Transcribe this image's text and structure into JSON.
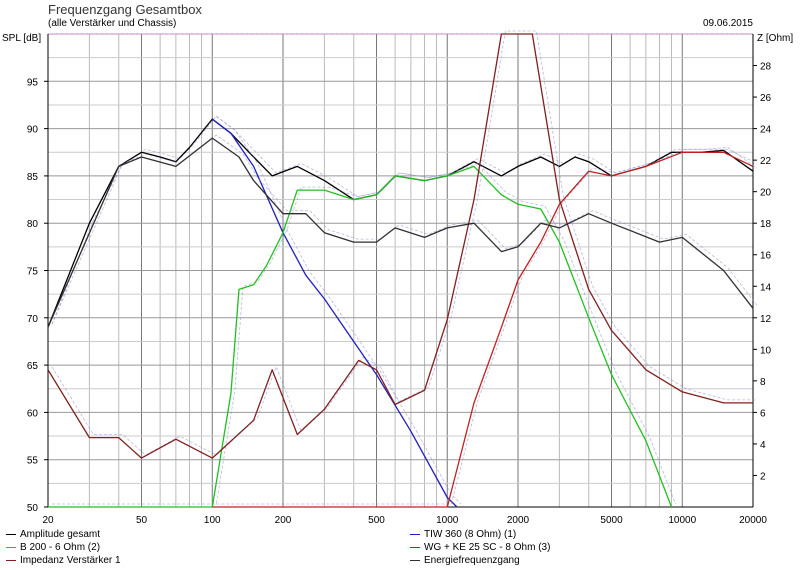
{
  "chart_data": {
    "type": "line",
    "title": "Frequenzgang Gesamtbox",
    "subtitle": "(alle Verstärker und Chassis)",
    "date": "09.06.2015",
    "xlabel": "",
    "ylabel": "SPL [dB]",
    "y2label": "Z [Ohm]",
    "xscale": "log",
    "xlim": [
      20,
      20000
    ],
    "ylim": [
      50,
      100
    ],
    "y2lim": [
      0,
      30
    ],
    "x_ticks": [
      20,
      50,
      100,
      200,
      500,
      1000,
      2000,
      5000,
      10000,
      20000
    ],
    "y_ticks": [
      50,
      55,
      60,
      65,
      70,
      75,
      80,
      85,
      90,
      95
    ],
    "y2_ticks": [
      2,
      4,
      6,
      8,
      10,
      12,
      14,
      16,
      18,
      20,
      22,
      24,
      26,
      28
    ],
    "grid": true,
    "legend_position": "bottom",
    "series": [
      {
        "name": "Amplitude gesamt",
        "color": "#000000",
        "axis": "left",
        "x": [
          20,
          30,
          40,
          50,
          60,
          70,
          80,
          100,
          120,
          150,
          180,
          230,
          300,
          400,
          500,
          600,
          800,
          1000,
          1300,
          1700,
          2000,
          2500,
          3000,
          3500,
          4000,
          5000,
          7000,
          9000,
          12000,
          15000,
          20000
        ],
        "y": [
          69,
          80,
          86,
          87.5,
          87,
          86.5,
          88,
          91,
          89.5,
          87,
          85,
          86,
          84.5,
          82.5,
          83,
          85,
          84.5,
          85,
          86.5,
          85,
          86,
          87,
          86,
          87,
          86.5,
          85,
          86,
          87.5,
          87.5,
          87.7,
          85.5
        ]
      },
      {
        "name": "TIW 360 (8 Ohm) (1)",
        "color": "#2020c0",
        "axis": "left",
        "x": [
          100,
          120,
          150,
          200,
          250,
          300,
          400,
          500,
          700,
          1000,
          1100
        ],
        "y": [
          91,
          89.5,
          86,
          79,
          74.5,
          72,
          67.5,
          64,
          58,
          51,
          50
        ]
      },
      {
        "name": "B 200 - 6 Ohm (2)",
        "color": "#20c020",
        "axis": "left",
        "x": [
          20,
          100,
          120,
          130,
          150,
          170,
          200,
          230,
          300,
          400,
          500,
          600,
          800,
          1000,
          1300,
          1700,
          2000,
          2500,
          3000,
          4000,
          5000,
          7000,
          9000
        ],
        "y": [
          50,
          50,
          62,
          73,
          73.5,
          75.5,
          79,
          83.5,
          83.5,
          82.5,
          83,
          85,
          84.5,
          85,
          86,
          83,
          82,
          81.5,
          78,
          70,
          64,
          57,
          50
        ]
      },
      {
        "name": "WG + KE 25 SC - 8 Ohm (3)",
        "color": "#c02020",
        "axis": "left",
        "x": [
          100,
          1000,
          1300,
          1700,
          2000,
          2500,
          3000,
          4000,
          5000,
          7000,
          10000,
          15000,
          20000
        ],
        "y": [
          50,
          50,
          61,
          69,
          74,
          78,
          82,
          85.5,
          85,
          86,
          87.5,
          87.5,
          86
        ]
      },
      {
        "name": "Impedanz Verstärker 1",
        "color": "#802020",
        "axis": "right",
        "x": [
          20,
          30,
          40,
          50,
          70,
          100,
          150,
          180,
          230,
          300,
          420,
          500,
          600,
          800,
          1000,
          1300,
          1700,
          2300,
          3000,
          4000,
          5000,
          7000,
          10000,
          15000,
          20000
        ],
        "y": [
          8.7,
          4.4,
          4.4,
          3.1,
          4.3,
          3.1,
          5.5,
          8.7,
          4.6,
          6.2,
          9.3,
          8.7,
          6.5,
          7.4,
          11.9,
          19.5,
          30,
          30,
          19.5,
          13.8,
          11.2,
          8.7,
          7.3,
          6.6,
          6.6
        ]
      },
      {
        "name": "Energiefrequenzgang",
        "color": "#303030",
        "axis": "left",
        "x": [
          20,
          40,
          50,
          70,
          100,
          130,
          150,
          200,
          250,
          300,
          400,
          500,
          600,
          800,
          1000,
          1300,
          1700,
          2000,
          2500,
          3000,
          4000,
          5000,
          8000,
          10000,
          15000,
          20000
        ],
        "y": [
          69,
          86,
          87,
          86,
          89,
          87,
          84.5,
          81,
          81,
          79,
          78,
          78,
          79.5,
          78.5,
          79.5,
          80,
          77,
          77.5,
          80,
          79.5,
          81,
          80,
          78,
          78.5,
          75,
          71
        ]
      }
    ]
  }
}
